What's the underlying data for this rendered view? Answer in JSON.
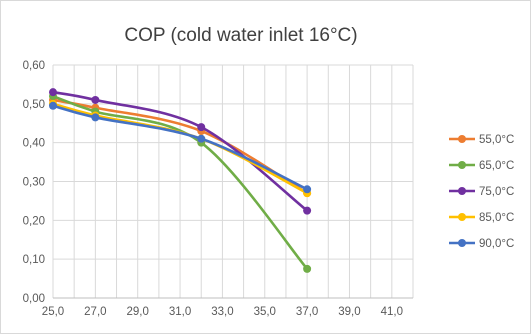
{
  "chart_data": {
    "type": "line",
    "title": "COP (cold water inlet 16°C)",
    "xlabel": "",
    "ylabel": "",
    "xlim": [
      25,
      42
    ],
    "ylim": [
      0,
      0.6
    ],
    "x_ticks": [
      "25,0",
      "27,0",
      "29,0",
      "31,0",
      "33,0",
      "35,0",
      "37,0",
      "39,0",
      "41,0"
    ],
    "y_ticks": [
      "0,00",
      "0,10",
      "0,20",
      "0,30",
      "0,40",
      "0,50",
      "0,60"
    ],
    "grid": true,
    "legend_position": "right",
    "x": [
      25,
      27,
      32,
      37
    ],
    "series": [
      {
        "name": "55,0°C",
        "color": "#ED7D31",
        "values": [
          0.51,
          0.49,
          0.43,
          0.27
        ]
      },
      {
        "name": "65,0°C",
        "color": "#70AD47",
        "values": [
          0.52,
          0.48,
          0.4,
          0.075
        ]
      },
      {
        "name": "75,0°C",
        "color": "#7030A0",
        "values": [
          0.53,
          0.51,
          0.44,
          0.225
        ]
      },
      {
        "name": "85,0°C",
        "color": "#FFC000",
        "values": [
          0.5,
          0.47,
          0.41,
          0.27
        ]
      },
      {
        "name": "90,0°C",
        "color": "#4472C4",
        "values": [
          0.495,
          0.465,
          0.41,
          0.28
        ]
      }
    ]
  }
}
